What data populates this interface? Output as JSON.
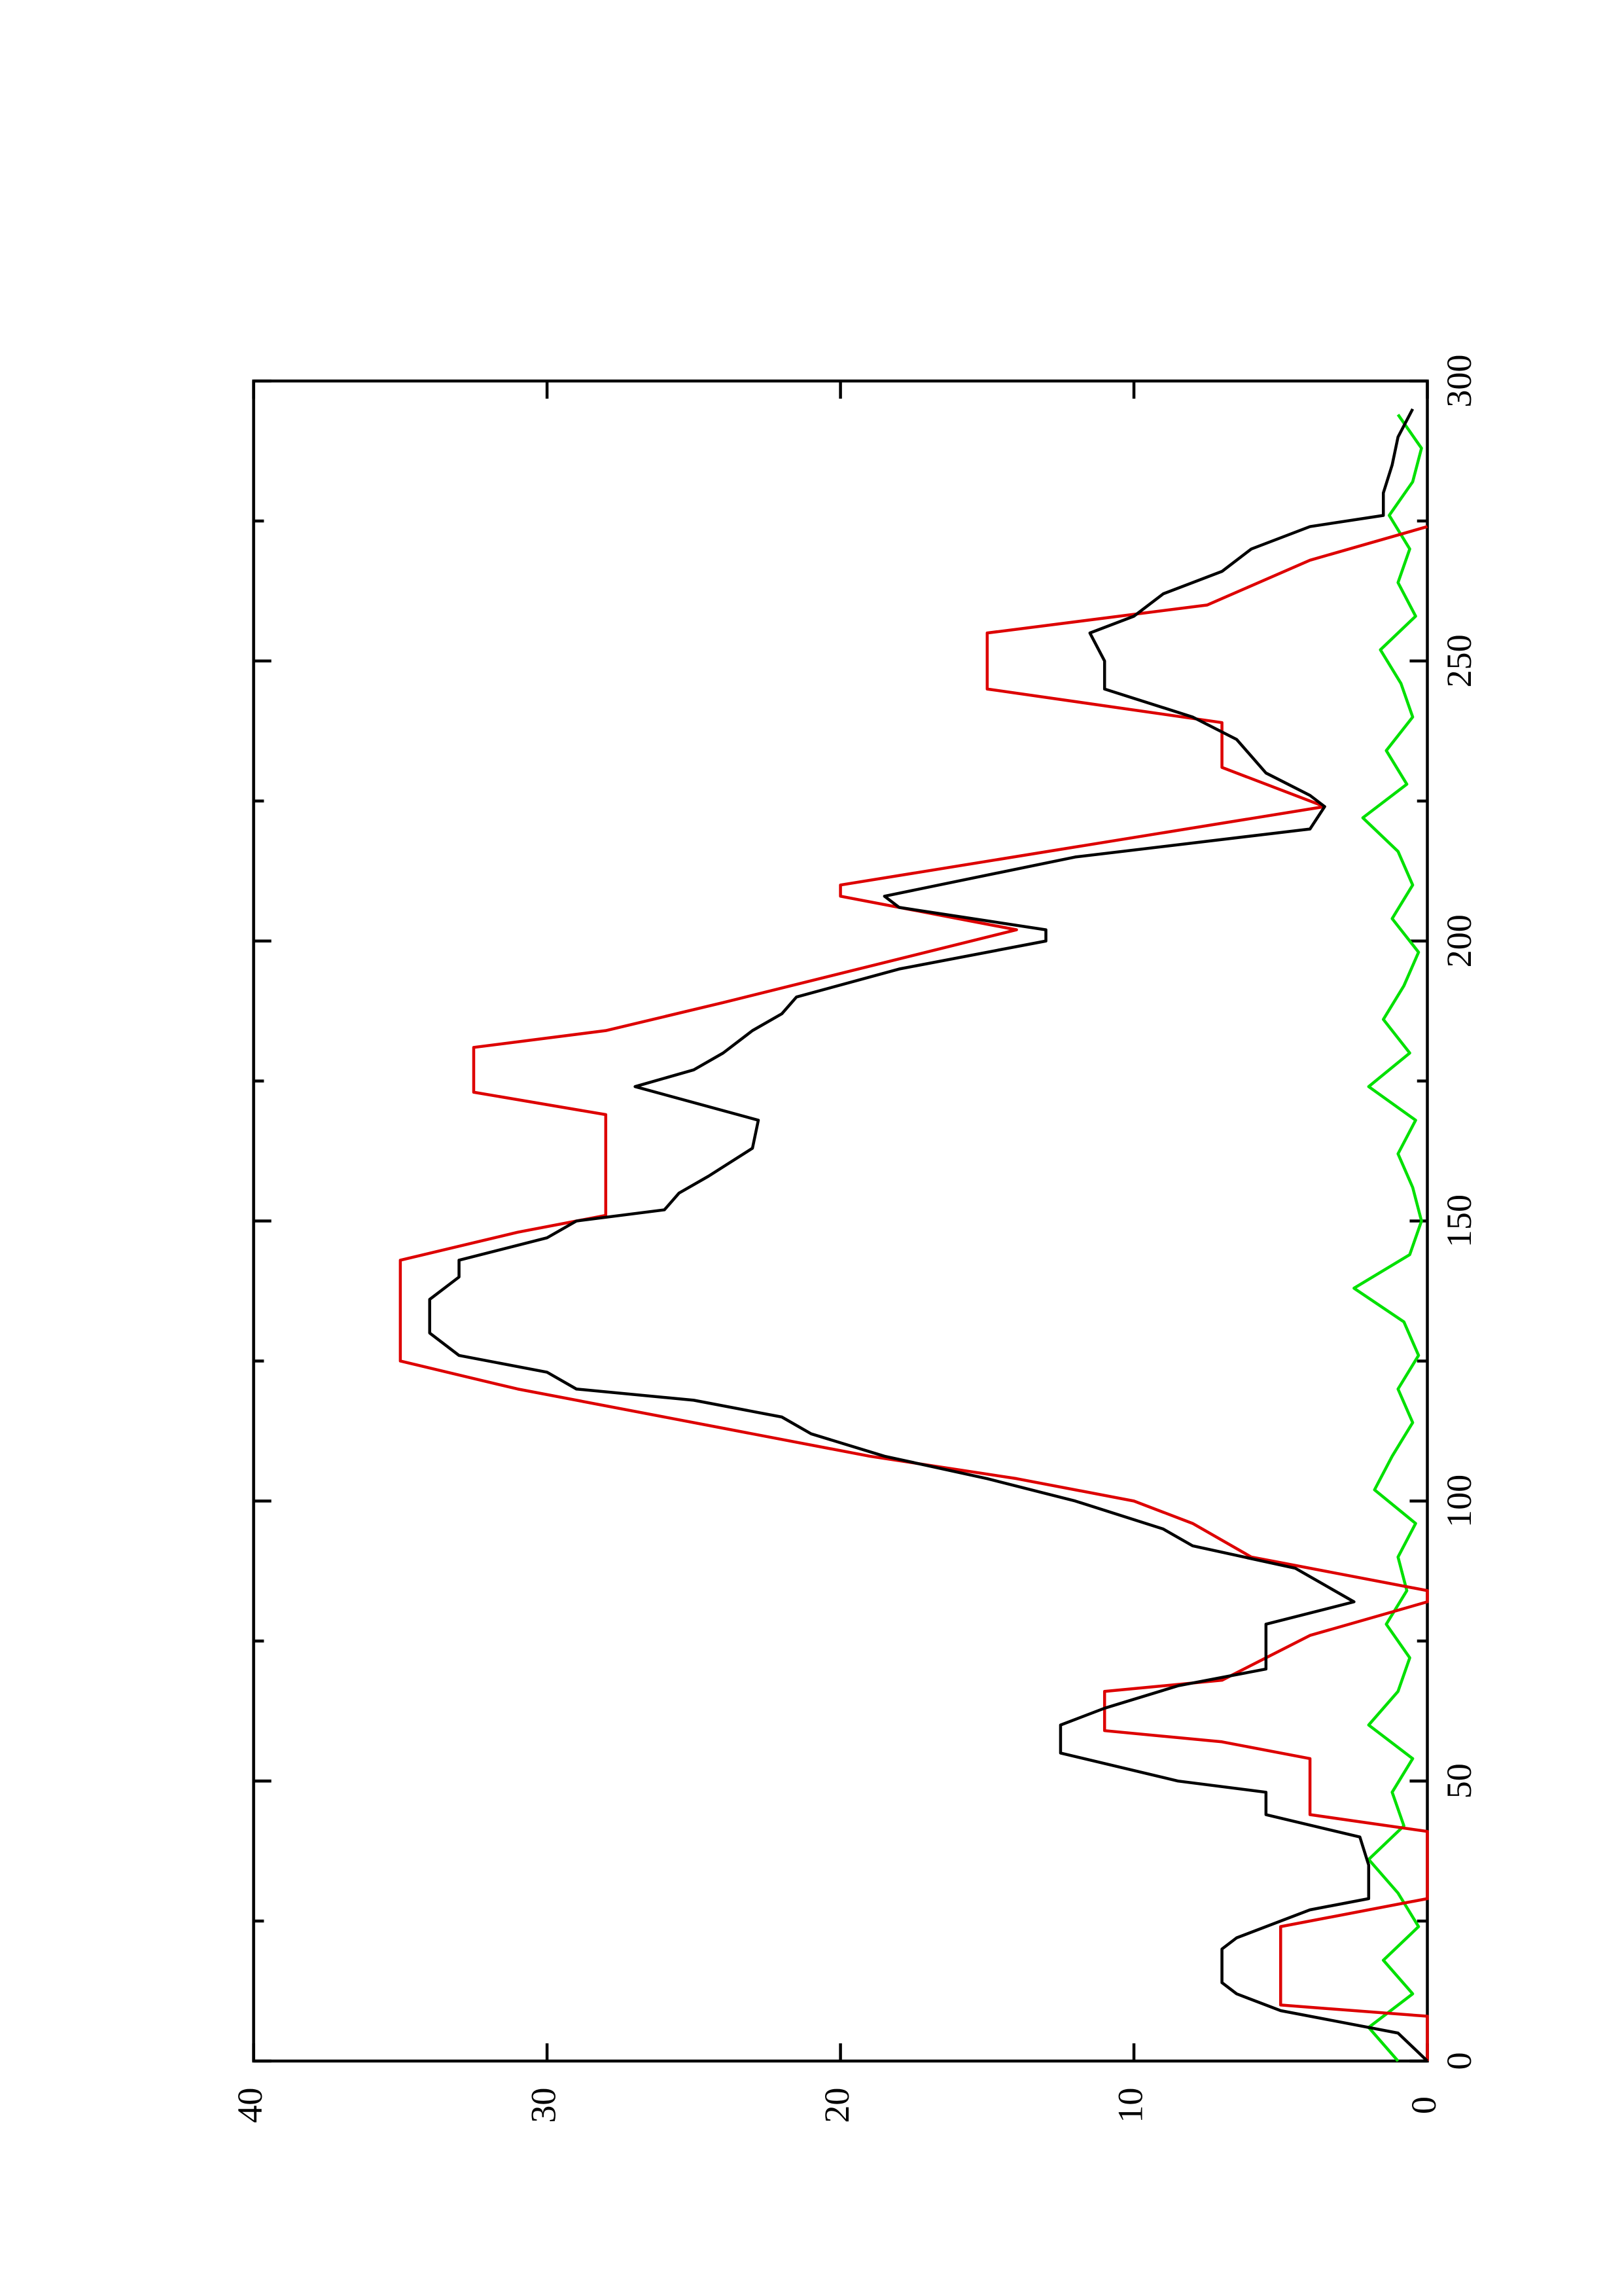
{
  "chart_data": {
    "type": "line",
    "orientation": "rotated",
    "xlim": [
      0,
      300
    ],
    "xticks": [
      0,
      50,
      100,
      150,
      200,
      250,
      300
    ],
    "xminor_ticks": [
      25,
      75,
      125,
      175,
      225,
      275
    ],
    "ylim": [
      0,
      40
    ],
    "yticks": [
      0,
      10,
      20,
      30,
      40
    ],
    "series": [
      {
        "color": "#00e000",
        "x": [
          0,
          6,
          12,
          18,
          24,
          30,
          36,
          42,
          48,
          54,
          60,
          66,
          72,
          78,
          84,
          90,
          96,
          102,
          108,
          114,
          120,
          126,
          132,
          138,
          144,
          150,
          156,
          162,
          168,
          174,
          180,
          186,
          192,
          198,
          204,
          210,
          216,
          222,
          228,
          234,
          240,
          246,
          252,
          258,
          264,
          270,
          276,
          282,
          288,
          294
        ],
        "values": [
          1,
          2,
          0.5,
          1.5,
          0.3,
          1,
          2,
          0.8,
          1.2,
          0.5,
          2,
          1,
          0.6,
          1.4,
          0.7,
          1,
          0.4,
          1.8,
          1.2,
          0.5,
          1,
          0.3,
          0.8,
          2.5,
          0.6,
          0.2,
          0.5,
          1,
          0.4,
          2,
          0.6,
          1.5,
          0.8,
          0.3,
          1.2,
          0.5,
          1,
          2.2,
          0.7,
          1.4,
          0.5,
          0.9,
          1.6,
          0.4,
          1,
          0.6,
          1.3,
          0.5,
          0.2,
          1
        ]
      },
      {
        "color": "#dd0000",
        "x": [
          0,
          8,
          10,
          24,
          29,
          41,
          44,
          54,
          57,
          59,
          66,
          68,
          76,
          82,
          84,
          90,
          96,
          100,
          104,
          108,
          113,
          120,
          125,
          143,
          148,
          151,
          169,
          173,
          181,
          184,
          189,
          202,
          208,
          210,
          224,
          231,
          239,
          245,
          255,
          260,
          268,
          274
        ],
        "values": [
          0,
          0,
          5,
          5,
          0,
          0,
          4,
          4,
          7,
          11,
          11,
          7,
          4,
          0,
          0,
          6,
          8,
          10,
          14,
          19,
          24,
          31,
          35,
          35,
          31,
          28,
          28,
          32.5,
          32.5,
          28,
          24,
          14,
          20,
          20,
          3.5,
          7,
          7,
          15,
          15,
          7.5,
          4,
          0
        ]
      },
      {
        "color": "#000000",
        "x": [
          0,
          5,
          9,
          12,
          14,
          20,
          22,
          27,
          29,
          35,
          40,
          44,
          48,
          50,
          55,
          60,
          63,
          67,
          70,
          78,
          82,
          85,
          88,
          92,
          95,
          100,
          104,
          108,
          112,
          115,
          118,
          120,
          123,
          126,
          130,
          136,
          140,
          143,
          147,
          150,
          152,
          155,
          158,
          163,
          168,
          174,
          177,
          180,
          184,
          187,
          190,
          195,
          200,
          202,
          206,
          208,
          215,
          220,
          224,
          226,
          230,
          233,
          236,
          240,
          245,
          250,
          255,
          258,
          262,
          266,
          270,
          274,
          276,
          280,
          285,
          290,
          295
        ],
        "values": [
          0,
          1,
          5,
          6.5,
          7,
          7,
          6.5,
          4,
          2,
          2,
          2.3,
          5.5,
          5.5,
          8.5,
          12.5,
          12.5,
          11,
          8.5,
          5.5,
          5.5,
          2.5,
          3.5,
          4.5,
          8,
          9,
          12,
          15,
          18.5,
          21,
          22,
          25,
          29,
          30,
          33,
          34,
          34,
          33,
          33,
          30,
          29,
          26,
          25.5,
          24.5,
          23,
          22.8,
          27,
          25,
          24,
          23,
          22,
          21.5,
          18,
          13,
          13,
          18,
          18.5,
          12,
          4,
          3.5,
          4,
          5.5,
          6,
          6.5,
          8,
          11,
          11,
          11.5,
          10,
          9,
          7,
          6,
          4,
          1.5,
          1.5,
          1.2,
          1,
          0.5
        ]
      }
    ]
  }
}
